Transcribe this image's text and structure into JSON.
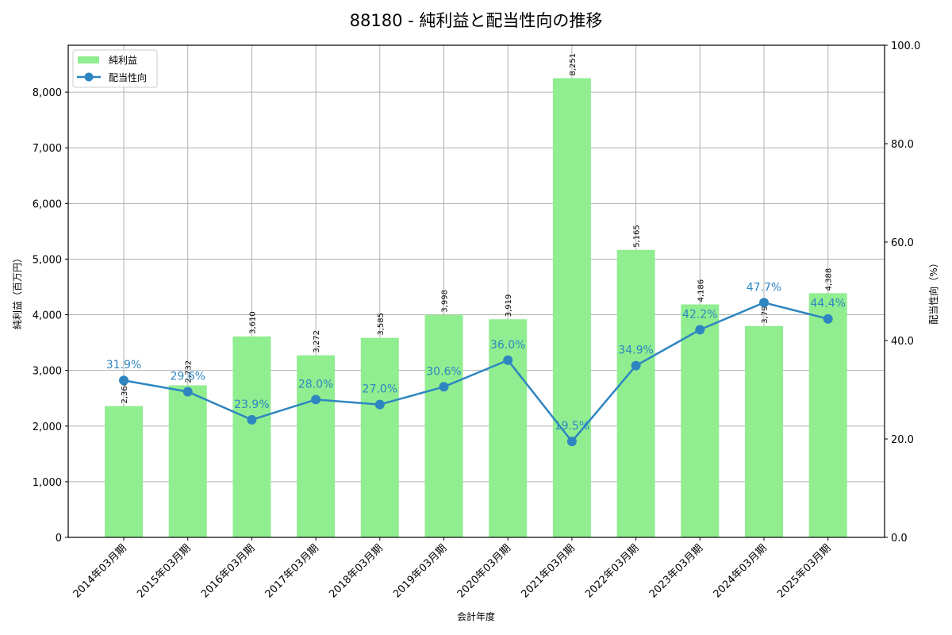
{
  "chart_data": {
    "type": "bar+line",
    "title": "88180 - 純利益と配当性向の推移",
    "xlabel": "会計年度",
    "ylabel": "純利益（百万円）",
    "ylabel_right": "配当性向（%）",
    "categories": [
      "2014年03月期",
      "2015年03月期",
      "2016年03月期",
      "2017年03月期",
      "2018年03月期",
      "2019年03月期",
      "2020年03月期",
      "2021年03月期",
      "2022年03月期",
      "2023年03月期",
      "2024年03月期",
      "2025年03月期"
    ],
    "series": [
      {
        "name": "純利益",
        "type": "bar",
        "axis": "left",
        "color": "#90ee90",
        "values": [
          2360,
          2732,
          3610,
          3272,
          3585,
          3998,
          3919,
          8251,
          5165,
          4186,
          3798,
          4388
        ],
        "labels": [
          "2,360",
          "2,732",
          "3,610",
          "3,272",
          "3,585",
          "3,998",
          "3,919",
          "8,251",
          "5,165",
          "4,186",
          "3,798",
          "4,388"
        ]
      },
      {
        "name": "配当性向",
        "type": "line",
        "axis": "right",
        "color": "#2e86c1",
        "values": [
          31.9,
          29.6,
          23.9,
          28.0,
          27.0,
          30.6,
          36.0,
          19.5,
          34.9,
          42.2,
          47.7,
          44.4
        ],
        "labels": [
          "31.9%",
          "29.6%",
          "23.9%",
          "28.0%",
          "27.0%",
          "30.6%",
          "36.0%",
          "19.5%",
          "34.9%",
          "42.2%",
          "47.7%",
          "44.4%"
        ]
      }
    ],
    "ylim": [
      0,
      8843
    ],
    "ylim_right": [
      0,
      100
    ],
    "yticks": [
      0,
      1000,
      2000,
      3000,
      4000,
      5000,
      6000,
      7000,
      8000
    ],
    "ytick_labels": [
      "0",
      "1,000",
      "2,000",
      "3,000",
      "4,000",
      "5,000",
      "6,000",
      "7,000",
      "8,000"
    ],
    "yticks_right": [
      0,
      20,
      40,
      60,
      80,
      100
    ],
    "ytick_labels_right": [
      "0.0",
      "20.0",
      "40.0",
      "60.0",
      "80.0",
      "100.0"
    ],
    "grid": true,
    "legend_position": "upper left"
  }
}
